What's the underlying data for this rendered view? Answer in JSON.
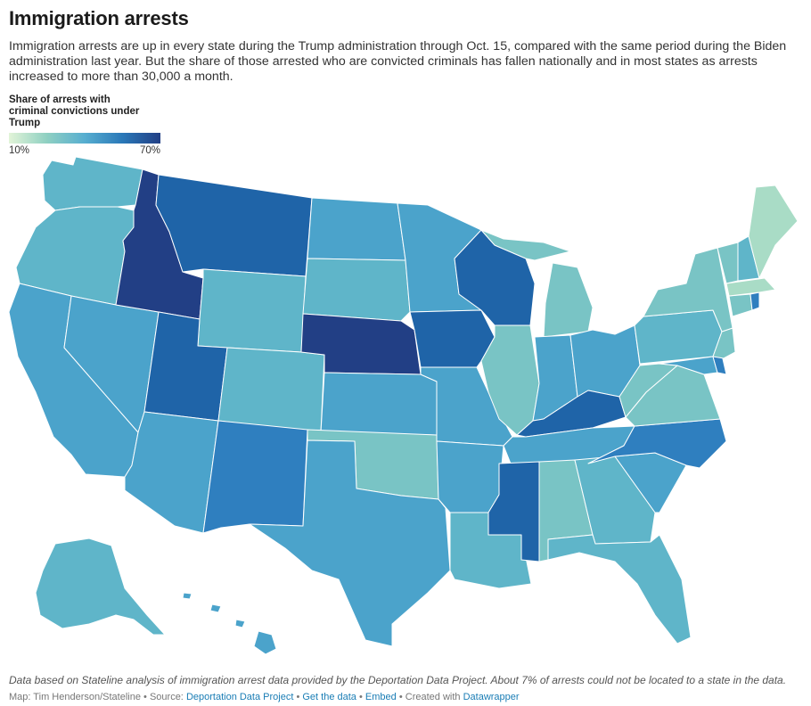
{
  "title": "Immigration arrests",
  "description": "Immigration arrests are up in every state during the Trump administration through Oct. 15, compared with the same period during the Biden administration last year. But the share of those arrested who are convicted criminals has fallen nationally and in most states as arrests increased to more than 30,000 a month.",
  "legend": {
    "title": "Share of arrests with criminal convictions under Trump",
    "min_label": "10%",
    "max_label": "70%"
  },
  "colors": {
    "darkest": "#223f85",
    "dark": "#1f64a8",
    "mid_dark": "#2f7fbf",
    "mid": "#4ba3cb",
    "teal": "#5fb5c9",
    "light_teal": "#79c4c5",
    "lightest": "#a9dcc6"
  },
  "notes": "Data based on Stateline analysis of immigration arrest data provided by the Deportation Data Project. About 7% of arrests could not be located to a state in the data.",
  "footer": {
    "credit": "Map: Tim Henderson/Stateline",
    "source_prefix": "Source:",
    "source": "Deportation Data Project",
    "get_data": "Get the data",
    "embed": "Embed",
    "created_with": "Created with",
    "tool": "Datawrapper"
  }
}
